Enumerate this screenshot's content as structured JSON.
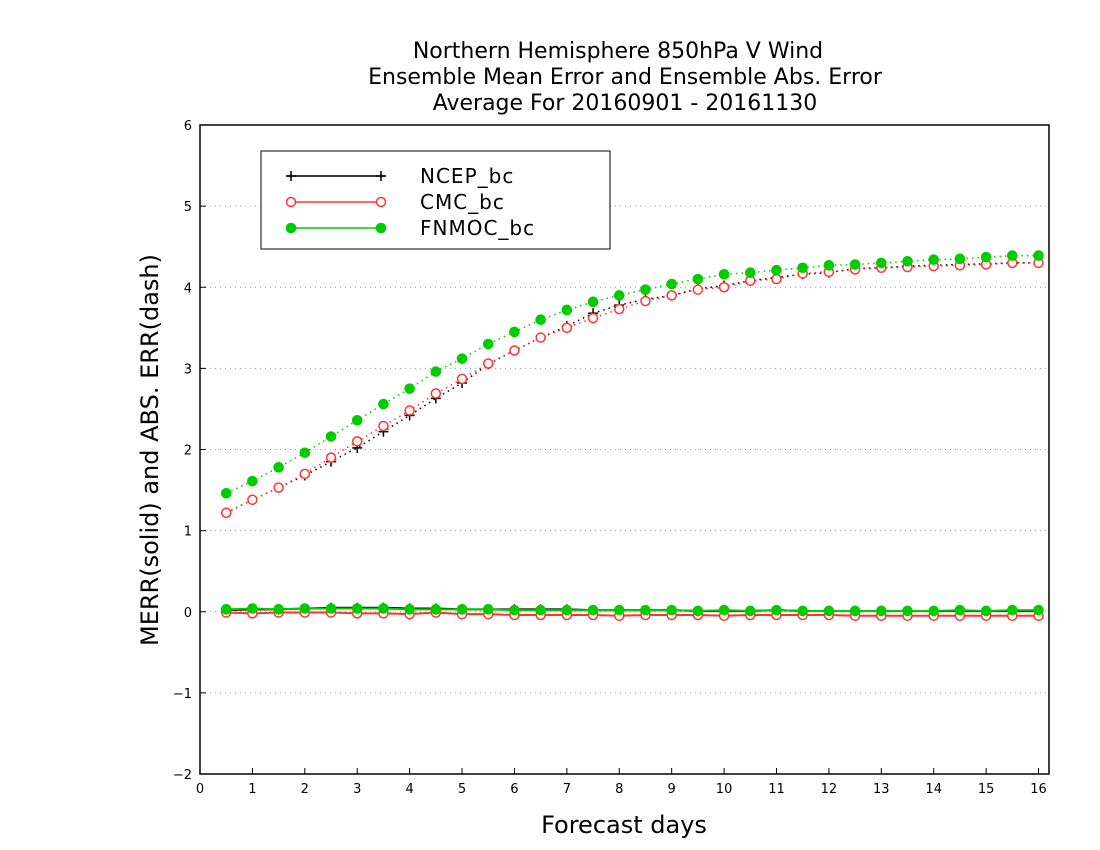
{
  "chart_data": {
    "type": "line",
    "title": [
      "Northern Hemisphere 850hPa V Wind",
      "Ensemble Mean Error and Ensemble Abs. Error",
      "Average For 20160901 - 20161130"
    ],
    "xlabel": "Forecast days",
    "ylabel": "MERR(solid) and ABS. ERR(dash)",
    "xlim": [
      0,
      16.2
    ],
    "ylim": [
      -2,
      6
    ],
    "xticks": [
      "0",
      "1",
      "2",
      "3",
      "4",
      "5",
      "6",
      "7",
      "8",
      "9",
      "10",
      "11",
      "12",
      "13",
      "14",
      "15",
      "16"
    ],
    "yticks": [
      "−2",
      "−1",
      "0",
      "1",
      "2",
      "3",
      "4",
      "5",
      "6"
    ],
    "grid": "horizontal dotted",
    "legend_position": "top-left",
    "x": [
      0.5,
      1,
      1.5,
      2,
      2.5,
      3,
      3.5,
      4,
      4.5,
      5,
      5.5,
      6,
      6.5,
      7,
      7.5,
      8,
      8.5,
      9,
      9.5,
      10,
      10.5,
      11,
      11.5,
      12,
      12.5,
      13,
      13.5,
      14,
      14.5,
      15,
      15.5,
      16
    ],
    "series": [
      {
        "name": "NCEP_bc",
        "color": "#000000",
        "marker": "plus",
        "merr": [
          0.02,
          0.03,
          0.03,
          0.04,
          0.05,
          0.05,
          0.05,
          0.04,
          0.04,
          0.03,
          0.03,
          0.03,
          0.03,
          0.03,
          0.02,
          0.02,
          0.02,
          0.02,
          0.01,
          0.01,
          0.01,
          0.02,
          0.01,
          0.01,
          0.01,
          0.01,
          0.01,
          0.01,
          0.01,
          0.01,
          0.01,
          0.01
        ],
        "abs_err": [
          1.22,
          1.38,
          1.53,
          1.68,
          1.85,
          2.02,
          2.22,
          2.42,
          2.63,
          2.82,
          3.05,
          3.22,
          3.38,
          3.52,
          3.68,
          3.78,
          3.85,
          3.9,
          3.98,
          4.02,
          4.08,
          4.12,
          4.16,
          4.18,
          4.23,
          4.24,
          4.26,
          4.27,
          4.28,
          4.29,
          4.3,
          4.3
        ]
      },
      {
        "name": "CMC_bc",
        "color": "#ff3333",
        "marker": "open-circle",
        "merr": [
          -0.01,
          -0.02,
          -0.01,
          -0.01,
          -0.01,
          -0.02,
          -0.02,
          -0.03,
          -0.01,
          -0.03,
          -0.03,
          -0.04,
          -0.04,
          -0.04,
          -0.04,
          -0.05,
          -0.04,
          -0.04,
          -0.04,
          -0.05,
          -0.04,
          -0.04,
          -0.04,
          -0.04,
          -0.05,
          -0.05,
          -0.05,
          -0.05,
          -0.05,
          -0.05,
          -0.05,
          -0.05
        ],
        "abs_err": [
          1.22,
          1.38,
          1.53,
          1.7,
          1.9,
          2.1,
          2.29,
          2.48,
          2.69,
          2.87,
          3.06,
          3.22,
          3.38,
          3.5,
          3.62,
          3.73,
          3.83,
          3.9,
          3.97,
          4.0,
          4.08,
          4.1,
          4.17,
          4.19,
          4.22,
          4.24,
          4.25,
          4.26,
          4.27,
          4.28,
          4.3,
          4.3
        ]
      },
      {
        "name": "FNMOC_bc",
        "color": "#00cc00",
        "marker": "filled-circle",
        "merr": [
          0.03,
          0.04,
          0.03,
          0.04,
          0.04,
          0.04,
          0.04,
          0.03,
          0.03,
          0.03,
          0.03,
          0.02,
          0.02,
          0.02,
          0.02,
          0.02,
          0.02,
          0.02,
          0.01,
          0.02,
          0.01,
          0.02,
          0.01,
          0.01,
          0.01,
          0.01,
          0.01,
          0.01,
          0.02,
          0.01,
          0.02,
          0.02
        ],
        "abs_err": [
          1.46,
          1.61,
          1.78,
          1.96,
          2.16,
          2.36,
          2.56,
          2.75,
          2.96,
          3.12,
          3.3,
          3.45,
          3.6,
          3.72,
          3.82,
          3.9,
          3.97,
          4.04,
          4.1,
          4.16,
          4.18,
          4.21,
          4.24,
          4.27,
          4.28,
          4.3,
          4.32,
          4.34,
          4.35,
          4.37,
          4.39,
          4.39
        ]
      }
    ]
  }
}
